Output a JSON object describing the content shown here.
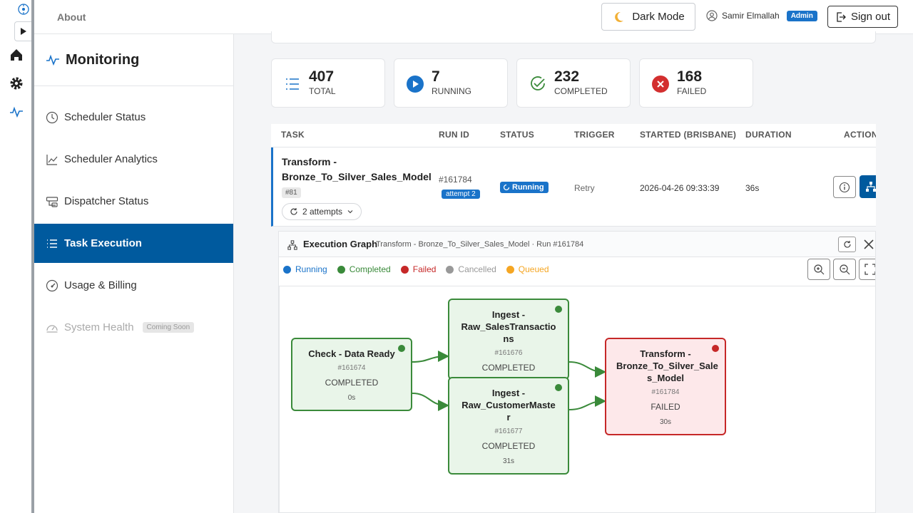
{
  "topbar": {
    "about": "About",
    "dark_mode": "Dark Mode",
    "user_name": "Samir Elmallah",
    "user_role": "Admin",
    "sign_out": "Sign out"
  },
  "sidebar": {
    "title": "Monitoring",
    "items": [
      {
        "label": "Scheduler Status",
        "icon": "clock-icon"
      },
      {
        "label": "Scheduler Analytics",
        "icon": "chart-line-icon"
      },
      {
        "label": "Dispatcher Status",
        "icon": "dispatcher-icon"
      },
      {
        "label": "Task Execution",
        "icon": "list-icon",
        "active": true
      },
      {
        "label": "Usage & Billing",
        "icon": "gauge-icon"
      },
      {
        "label": "System Health",
        "icon": "health-gauge-icon",
        "badge": "Coming Soon",
        "disabled": true
      }
    ]
  },
  "stats": [
    {
      "value": "407",
      "label": "TOTAL",
      "icon": "list-numbered-icon"
    },
    {
      "value": "7",
      "label": "RUNNING",
      "icon": "play-icon"
    },
    {
      "value": "232",
      "label": "COMPLETED",
      "icon": "check-circle-icon"
    },
    {
      "value": "168",
      "label": "FAILED",
      "icon": "x-circle-icon"
    }
  ],
  "table": {
    "headers": [
      "TASK",
      "RUN ID",
      "STATUS",
      "TRIGGER",
      "STARTED (BRISBANE)",
      "DURATION",
      "ACTIONS"
    ],
    "row": {
      "task_line1": "Transform -",
      "task_line2": "Bronze_To_Silver_Sales_Model",
      "tag": "#81",
      "attempts": "2 attempts",
      "run_id": "#161784",
      "attempt": "attempt 2",
      "status": "Running",
      "trigger": "Retry",
      "started": "2026-04-26 09:33:39",
      "duration": "36s"
    }
  },
  "graph": {
    "title": "Execution Graph",
    "subtitle": "Transform - Bronze_To_Silver_Sales_Model · Run #161784",
    "legend": [
      {
        "label": "Running",
        "color": "#1a73c9"
      },
      {
        "label": "Completed",
        "color": "#3a8a3a"
      },
      {
        "label": "Failed",
        "color": "#c62828"
      },
      {
        "label": "Cancelled",
        "color": "#999999"
      },
      {
        "label": "Queued",
        "color": "#f5a623"
      }
    ],
    "nodes": [
      {
        "title_lines": [
          "Check - Data Ready"
        ],
        "id": "#161674",
        "status": "COMPLETED",
        "duration": "0s"
      },
      {
        "title_lines": [
          "Ingest -",
          "Raw_SalesTransactio",
          "ns"
        ],
        "id": "#161676",
        "status": "COMPLETED",
        "duration": ""
      },
      {
        "title_lines": [
          "Ingest -",
          "Raw_CustomerMaste",
          "r"
        ],
        "id": "#161677",
        "status": "COMPLETED",
        "duration": "31s"
      },
      {
        "title_lines": [
          "Transform -",
          "Bronze_To_Silver_Sale",
          "s_Model"
        ],
        "id": "#161784",
        "status": "FAILED",
        "duration": "30s"
      }
    ]
  }
}
